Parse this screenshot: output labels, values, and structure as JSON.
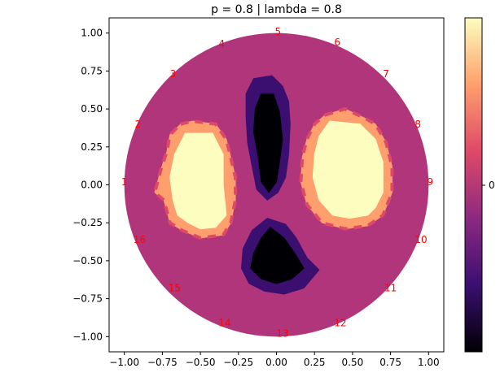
{
  "chart_data": {
    "type": "heatmap",
    "title": "p = 0.8 | lambda = 0.8",
    "xlabel": "",
    "ylabel": "",
    "xlim": [
      -1.1,
      1.1
    ],
    "ylim": [
      -1.1,
      1.1
    ],
    "x_ticks": [
      -1.0,
      -0.75,
      -0.5,
      -0.25,
      0.0,
      0.25,
      0.5,
      0.75,
      1.0
    ],
    "x_tick_labels": [
      "−1.00",
      "−0.75",
      "−0.50",
      "−0.25",
      "0.00",
      "0.25",
      "0.50",
      "0.75",
      "1.00"
    ],
    "y_ticks": [
      1.0,
      0.75,
      0.5,
      0.25,
      0.0,
      -0.25,
      -0.5,
      -0.75,
      -1.0
    ],
    "y_tick_labels": [
      "1.00",
      "0.75",
      "0.50",
      "0.25",
      "0.00",
      "−0.25",
      "−0.50",
      "−0.75",
      "−1.00"
    ],
    "grid": false,
    "colormap": "magma",
    "colormap_stops": [
      "#000004",
      "#3b0f70",
      "#8c2981",
      "#de4968",
      "#fe9f6d",
      "#fcfdbf"
    ],
    "background_color": "#b1357b",
    "colorbar": {
      "tick_labels": [
        "0"
      ]
    },
    "domain": {
      "shape": "circle",
      "center": [
        0,
        0
      ],
      "radius": 1.0
    },
    "inclusions": [
      {
        "name": "left-high-blob",
        "level": "high",
        "center": [
          -0.5,
          0.04
        ],
        "inner_polygon": [
          [
            -0.6,
            0.34
          ],
          [
            -0.42,
            0.34
          ],
          [
            -0.35,
            0.2
          ],
          [
            -0.35,
            0.0
          ],
          [
            -0.33,
            -0.2
          ],
          [
            -0.4,
            -0.28
          ],
          [
            -0.5,
            -0.29
          ],
          [
            -0.58,
            -0.25
          ],
          [
            -0.65,
            -0.2
          ],
          [
            -0.68,
            -0.1
          ],
          [
            -0.7,
            0.05
          ],
          [
            -0.67,
            0.2
          ]
        ],
        "outer_polygon": [
          [
            -0.63,
            0.4
          ],
          [
            -0.55,
            0.42
          ],
          [
            -0.4,
            0.4
          ],
          [
            -0.33,
            0.3
          ],
          [
            -0.3,
            0.18
          ],
          [
            -0.27,
            0.05
          ],
          [
            -0.27,
            -0.1
          ],
          [
            -0.3,
            -0.25
          ],
          [
            -0.35,
            -0.33
          ],
          [
            -0.5,
            -0.35
          ],
          [
            -0.62,
            -0.3
          ],
          [
            -0.7,
            -0.25
          ],
          [
            -0.74,
            -0.1
          ],
          [
            -0.8,
            -0.05
          ],
          [
            -0.76,
            0.1
          ],
          [
            -0.72,
            0.22
          ],
          [
            -0.7,
            0.33
          ]
        ]
      },
      {
        "name": "right-high-blob",
        "level": "high",
        "center": [
          0.46,
          0.1
        ],
        "inner_polygon": [
          [
            0.35,
            0.42
          ],
          [
            0.55,
            0.4
          ],
          [
            0.65,
            0.3
          ],
          [
            0.7,
            0.15
          ],
          [
            0.7,
            -0.05
          ],
          [
            0.65,
            -0.15
          ],
          [
            0.6,
            -0.2
          ],
          [
            0.48,
            -0.22
          ],
          [
            0.37,
            -0.2
          ],
          [
            0.28,
            -0.1
          ],
          [
            0.24,
            0.05
          ],
          [
            0.25,
            0.2
          ],
          [
            0.28,
            0.32
          ]
        ],
        "outer_polygon": [
          [
            0.32,
            0.46
          ],
          [
            0.45,
            0.5
          ],
          [
            0.58,
            0.44
          ],
          [
            0.65,
            0.4
          ],
          [
            0.72,
            0.28
          ],
          [
            0.76,
            0.12
          ],
          [
            0.76,
            -0.05
          ],
          [
            0.7,
            -0.2
          ],
          [
            0.6,
            -0.27
          ],
          [
            0.45,
            -0.29
          ],
          [
            0.3,
            -0.25
          ],
          [
            0.2,
            -0.13
          ],
          [
            0.16,
            0.02
          ],
          [
            0.17,
            0.18
          ],
          [
            0.2,
            0.3
          ],
          [
            0.25,
            0.4
          ]
        ]
      },
      {
        "name": "top-low-blob",
        "level": "low",
        "center": [
          -0.06,
          0.3
        ],
        "inner_polygon": [
          [
            -0.1,
            0.6
          ],
          [
            -0.02,
            0.6
          ],
          [
            0.02,
            0.48
          ],
          [
            0.04,
            0.3
          ],
          [
            0.02,
            0.15
          ],
          [
            0.0,
            0.02
          ],
          [
            -0.05,
            -0.05
          ],
          [
            -0.1,
            0.02
          ],
          [
            -0.12,
            0.18
          ],
          [
            -0.15,
            0.35
          ],
          [
            -0.14,
            0.5
          ]
        ],
        "outer_polygon": [
          [
            -0.15,
            0.7
          ],
          [
            -0.03,
            0.72
          ],
          [
            0.04,
            0.65
          ],
          [
            0.08,
            0.55
          ],
          [
            0.09,
            0.4
          ],
          [
            0.08,
            0.2
          ],
          [
            0.06,
            0.05
          ],
          [
            0.01,
            -0.05
          ],
          [
            -0.06,
            -0.1
          ],
          [
            -0.13,
            -0.03
          ],
          [
            -0.16,
            0.12
          ],
          [
            -0.19,
            0.28
          ],
          [
            -0.2,
            0.45
          ],
          [
            -0.2,
            0.6
          ]
        ]
      },
      {
        "name": "bottom-low-blob",
        "level": "low",
        "center": [
          -0.02,
          -0.5
        ],
        "inner_polygon": [
          [
            -0.04,
            -0.28
          ],
          [
            0.05,
            -0.35
          ],
          [
            0.12,
            -0.45
          ],
          [
            0.18,
            -0.55
          ],
          [
            0.1,
            -0.62
          ],
          [
            0.0,
            -0.65
          ],
          [
            -0.1,
            -0.62
          ],
          [
            -0.17,
            -0.55
          ],
          [
            -0.15,
            -0.45
          ],
          [
            -0.1,
            -0.35
          ]
        ],
        "outer_polygon": [
          [
            -0.06,
            -0.22
          ],
          [
            0.06,
            -0.26
          ],
          [
            0.13,
            -0.35
          ],
          [
            0.2,
            -0.48
          ],
          [
            0.28,
            -0.56
          ],
          [
            0.18,
            -0.68
          ],
          [
            0.05,
            -0.72
          ],
          [
            -0.08,
            -0.7
          ],
          [
            -0.18,
            -0.65
          ],
          [
            -0.23,
            -0.55
          ],
          [
            -0.22,
            -0.42
          ],
          [
            -0.16,
            -0.3
          ]
        ]
      }
    ],
    "electrodes": [
      {
        "label": "1",
        "x": -1.0,
        "y": 0.02
      },
      {
        "label": "2",
        "x": -0.91,
        "y": 0.4
      },
      {
        "label": "3",
        "x": -0.68,
        "y": 0.73
      },
      {
        "label": "4",
        "x": -0.36,
        "y": 0.93
      },
      {
        "label": "5",
        "x": 0.01,
        "y": 1.01
      },
      {
        "label": "6",
        "x": 0.4,
        "y": 0.94
      },
      {
        "label": "7",
        "x": 0.72,
        "y": 0.73
      },
      {
        "label": "8",
        "x": 0.93,
        "y": 0.4
      },
      {
        "label": "9",
        "x": 1.01,
        "y": 0.02
      },
      {
        "label": "10",
        "x": 0.95,
        "y": -0.36
      },
      {
        "label": "11",
        "x": 0.75,
        "y": -0.68
      },
      {
        "label": "12",
        "x": 0.42,
        "y": -0.91
      },
      {
        "label": "13",
        "x": 0.04,
        "y": -0.98
      },
      {
        "label": "14",
        "x": -0.34,
        "y": -0.91
      },
      {
        "label": "15",
        "x": -0.67,
        "y": -0.68
      },
      {
        "label": "16",
        "x": -0.9,
        "y": -0.36
      }
    ],
    "electrode_color": "#ff0000"
  }
}
